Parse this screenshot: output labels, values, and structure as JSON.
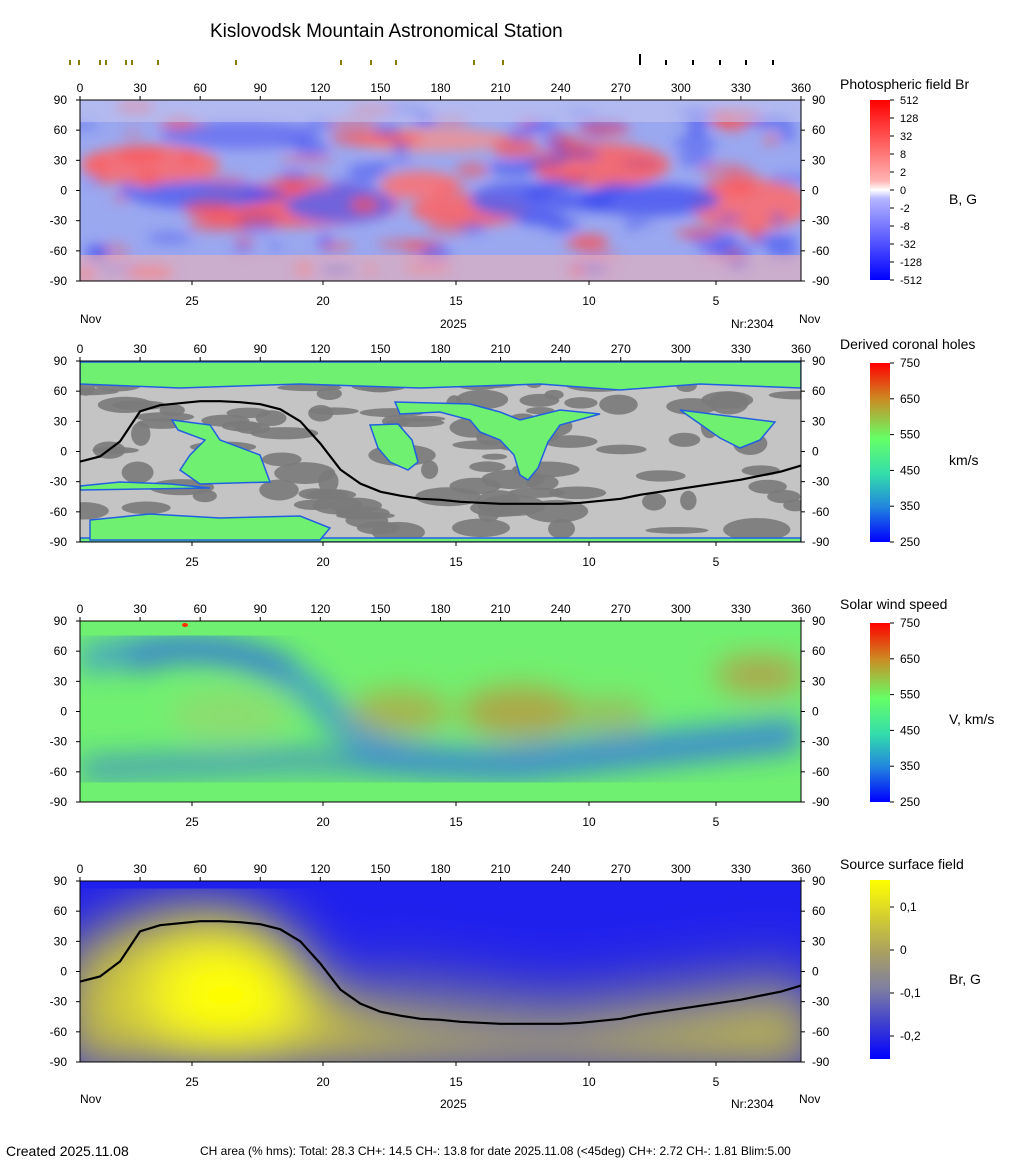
{
  "title": "Kislovodsk Mountain Astronomical Station",
  "month_label": "Nov",
  "year_label": "2025",
  "rotation_label": "Nr:2304",
  "footer": {
    "created": "Created  2025.11.08",
    "ch_area": "CH area (% hms): Total: 28.3 CH+: 14.5   CH-: 13.8 for date 2025.11.08 (<45deg) CH+: 2.72    CH-: 1.81 Blim:5.00"
  },
  "colors": {
    "neutral_line": "#000000",
    "olive_ticks": "#8a7d00",
    "ch_dark": "#7a7a7a",
    "ch_light": "#c4c4c4"
  },
  "chart_data": [
    {
      "type": "heatmap",
      "name_label": "Photospheric field Br",
      "unit": "B, G",
      "x_ticks": [
        "0",
        "30",
        "60",
        "90",
        "120",
        "150",
        "180",
        "210",
        "240",
        "270",
        "300",
        "330",
        "360"
      ],
      "y_ticks": [
        "90",
        "60",
        "30",
        "0",
        "-30",
        "-60",
        "-90"
      ],
      "date_ticks": [
        "25",
        "20",
        "15",
        "10",
        "5"
      ],
      "xlim": [
        0,
        360
      ],
      "ylim": [
        -90,
        90
      ],
      "colorbar_labels": [
        "512",
        "128",
        "32",
        "8",
        "2",
        "0",
        "-2",
        "-8",
        "-32",
        "-128",
        "-512"
      ],
      "colorscale": [
        "#0000ff",
        "#ffffff",
        "#ff0000"
      ]
    },
    {
      "type": "heatmap",
      "name_label": "Derived coronal holes",
      "unit": "km/s",
      "x_ticks": [
        "0",
        "30",
        "60",
        "90",
        "120",
        "150",
        "180",
        "210",
        "240",
        "270",
        "300",
        "330",
        "360"
      ],
      "y_ticks": [
        "90",
        "60",
        "30",
        "0",
        "-30",
        "-60",
        "-90"
      ],
      "date_ticks": [
        "25",
        "20",
        "15",
        "10",
        "5"
      ],
      "xlim": [
        0,
        360
      ],
      "ylim": [
        -90,
        90
      ],
      "colorbar_labels": [
        "750",
        "650",
        "550",
        "450",
        "350",
        "250"
      ],
      "colorscale": [
        "#0000ff",
        "#33ddaa",
        "#66ff66",
        "#cc8a22",
        "#ff0000"
      ]
    },
    {
      "type": "heatmap",
      "name_label": "Solar wind speed",
      "unit": "V, km/s",
      "x_ticks": [
        "0",
        "30",
        "60",
        "90",
        "120",
        "150",
        "180",
        "210",
        "240",
        "270",
        "300",
        "330",
        "360"
      ],
      "y_ticks": [
        "90",
        "60",
        "30",
        "0",
        "-30",
        "-60",
        "-90"
      ],
      "date_ticks": [
        "25",
        "20",
        "15",
        "10",
        "5"
      ],
      "xlim": [
        0,
        360
      ],
      "ylim": [
        -90,
        90
      ],
      "colorbar_labels": [
        "750",
        "650",
        "550",
        "450",
        "350",
        "250"
      ],
      "colorscale": [
        "#0000ff",
        "#33ddaa",
        "#66ff66",
        "#cc8a22",
        "#ff0000"
      ]
    },
    {
      "type": "heatmap",
      "name_label": "Source surface field",
      "unit": "Br, G",
      "x_ticks": [
        "0",
        "30",
        "60",
        "90",
        "120",
        "150",
        "180",
        "210",
        "240",
        "270",
        "300",
        "330",
        "360"
      ],
      "y_ticks": [
        "90",
        "60",
        "30",
        "0",
        "-30",
        "-60",
        "-90"
      ],
      "date_ticks": [
        "25",
        "20",
        "15",
        "10",
        "5"
      ],
      "xlim": [
        0,
        360
      ],
      "ylim": [
        -90,
        90
      ],
      "colorbar_labels": [
        "0,1",
        "0",
        "-0,1",
        "-0,2"
      ],
      "colorscale": [
        "#0000ff",
        "#808080",
        "#ffff00"
      ],
      "neutral_line": {
        "lon": [
          0,
          10,
          20,
          30,
          40,
          50,
          60,
          70,
          80,
          90,
          100,
          110,
          120,
          130,
          140,
          150,
          160,
          170,
          180,
          190,
          200,
          210,
          220,
          230,
          240,
          250,
          260,
          270,
          280,
          290,
          300,
          310,
          320,
          330,
          340,
          350,
          360
        ],
        "lat": [
          -10,
          -5,
          10,
          40,
          46,
          48,
          50,
          50,
          49,
          47,
          42,
          30,
          8,
          -18,
          -32,
          -40,
          -44,
          -47,
          -48,
          -50,
          -51,
          -52,
          -52,
          -52,
          -52,
          -51,
          -49,
          -47,
          -43,
          -40,
          -37,
          -34,
          -31,
          -28,
          -24,
          -20,
          -14
        ]
      }
    }
  ]
}
